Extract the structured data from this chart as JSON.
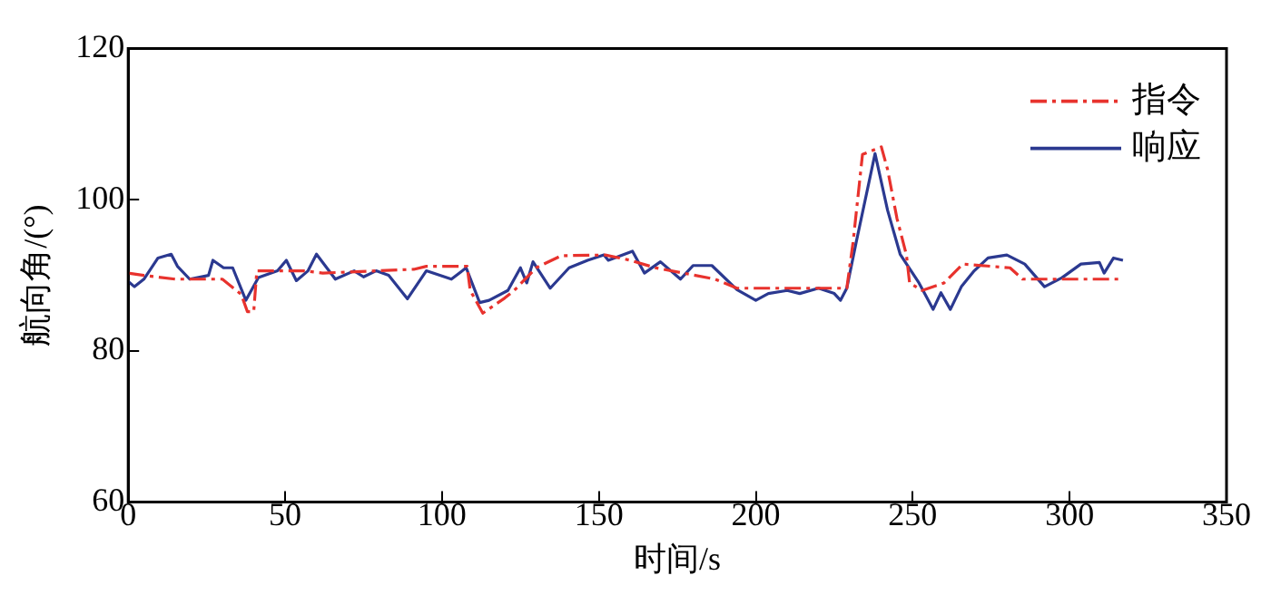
{
  "chart_data": {
    "type": "line",
    "xlabel": "时间/s",
    "ylabel": "航向角/(°)",
    "xlim": [
      0,
      350
    ],
    "xticks": [
      0,
      50,
      100,
      150,
      200,
      250,
      300,
      350
    ],
    "ylim": [
      60,
      120
    ],
    "yticks": [
      60,
      80,
      100,
      120
    ],
    "grid": false,
    "legend": "top right",
    "marker": "none",
    "series": [
      {
        "name": "指令",
        "color": "#e8322d",
        "line_style": "dashed",
        "x": [
          0,
          5,
          15,
          30,
          36,
          38,
          40,
          41,
          56,
          62,
          91,
          95,
          108,
          109,
          113,
          120,
          123,
          130,
          138,
          152,
          160,
          168,
          187,
          194,
          229,
          231,
          234,
          240,
          242,
          245,
          248,
          249,
          253,
          260,
          266,
          281,
          285,
          300,
          317
        ],
        "values": [
          90.3,
          90,
          89.5,
          89.5,
          87.5,
          85.2,
          85.2,
          90.6,
          90.6,
          90.3,
          90.8,
          91.2,
          91.2,
          88,
          85,
          87,
          88,
          91,
          92.6,
          92.7,
          92,
          91,
          89.5,
          88.3,
          88.3,
          94.4,
          106,
          107,
          104,
          97.5,
          92.7,
          89,
          88,
          89,
          91.5,
          91,
          89.5,
          89.5,
          89.5
        ]
      },
      {
        "name": "响应",
        "color": "#2b3990",
        "line_style": "solid",
        "x": [
          0,
          2,
          5,
          9.5,
          13.7,
          15.7,
          19.6,
          25.6,
          27,
          30.4,
          33.3,
          37.5,
          41.5,
          47.6,
          50.4,
          53.6,
          57.3,
          60,
          66,
          72,
          75,
          79,
          83,
          89,
          95,
          103,
          107.7,
          112,
          115,
          121,
          125,
          127,
          129,
          134.5,
          140.5,
          146.4,
          151.6,
          153,
          160.7,
          164.5,
          169.6,
          176,
          180,
          186,
          194,
          200,
          204,
          210,
          214,
          220,
          225,
          227,
          229,
          232,
          238,
          242,
          246,
          252,
          256.5,
          259,
          262,
          265.5,
          269.6,
          274,
          280,
          285.7,
          292,
          297.6,
          303.6,
          309.5,
          311,
          314,
          317
        ],
        "values": [
          89.2,
          88.5,
          89.5,
          92.3,
          92.8,
          91.2,
          89.5,
          90,
          92,
          91,
          91,
          86.7,
          89.7,
          90.6,
          92,
          89.3,
          90.6,
          92.8,
          89.5,
          90.6,
          89.8,
          90.6,
          90,
          86.9,
          90.6,
          89.5,
          91,
          86.4,
          86.7,
          88,
          91,
          89,
          91.8,
          88.3,
          91,
          92,
          92.7,
          92,
          93.2,
          90.3,
          91.8,
          89.5,
          91.3,
          91.3,
          88.1,
          86.7,
          87.6,
          88,
          87.6,
          88.3,
          87.6,
          86.7,
          88.3,
          94.4,
          106.1,
          98.6,
          92.8,
          89,
          85.5,
          87.7,
          85.5,
          88.5,
          90.6,
          92.3,
          92.7,
          91.5,
          88.5,
          89.7,
          91.5,
          91.7,
          90.3,
          92.3,
          92
        ]
      }
    ]
  }
}
